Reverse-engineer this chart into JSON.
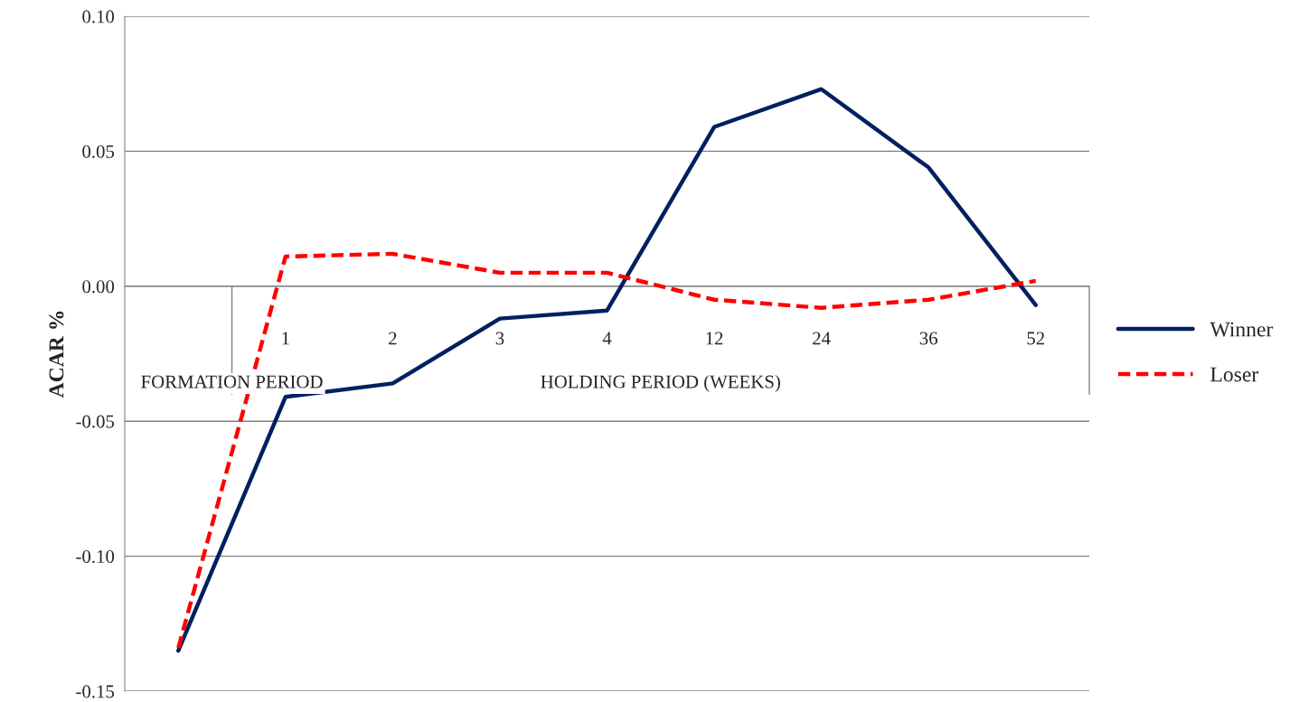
{
  "chart_data": {
    "type": "line",
    "ylabel": "ACAR %",
    "categories": [
      null,
      "1",
      "2",
      "3",
      "4",
      "12",
      "24",
      "36",
      "52"
    ],
    "series": [
      {
        "name": "Winner",
        "color": "#002060",
        "line_style": "solid",
        "values": [
          -0.135,
          -0.041,
          -0.036,
          -0.012,
          -0.009,
          0.059,
          0.073,
          0.044,
          -0.007
        ]
      },
      {
        "name": "Loser",
        "color": "#ff0000",
        "line_style": "dashed",
        "values": [
          -0.134,
          0.011,
          0.012,
          0.005,
          0.005,
          -0.005,
          -0.008,
          -0.005,
          0.002
        ]
      }
    ],
    "ylim": [
      -0.15,
      0.1
    ],
    "yticks": [
      {
        "value": -0.15,
        "label": "-0.15"
      },
      {
        "value": -0.1,
        "label": "-0.10"
      },
      {
        "value": -0.05,
        "label": "-0.05"
      },
      {
        "value": 0,
        "label": "0.00"
      },
      {
        "value": 0.05,
        "label": "0.05"
      },
      {
        "value": 0.1,
        "label": "0.10"
      }
    ],
    "annotations": [
      "FORMATION PERIOD",
      "HOLDING PERIOD (WEEKS)"
    ],
    "grid": "y",
    "legend": "right",
    "marker": "none"
  }
}
